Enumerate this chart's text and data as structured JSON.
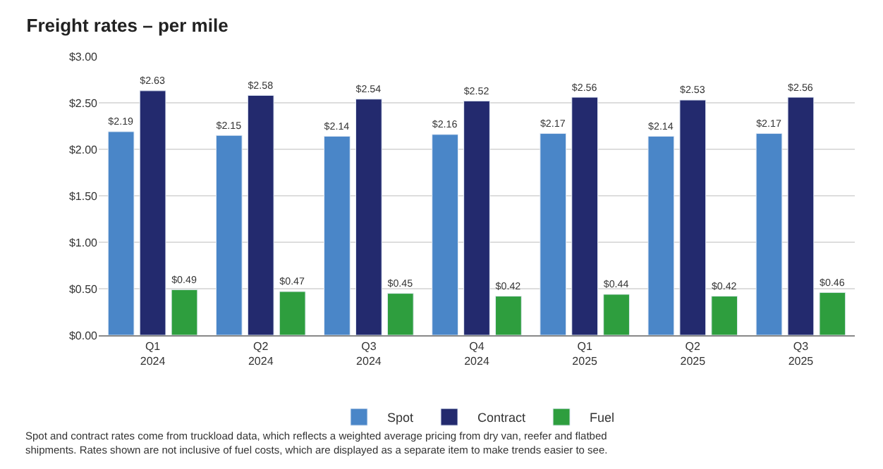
{
  "chart_data": {
    "type": "bar",
    "title": "Freight rates – per mile",
    "categories": [
      "Q1\n2024",
      "Q2\n2024",
      "Q3\n2024",
      "Q4\n2024",
      "Q1\n2025",
      "Q2\n2025",
      "Q3\n2025"
    ],
    "series": [
      {
        "name": "Spot",
        "color": "#4a86c8",
        "values": [
          2.19,
          2.15,
          2.14,
          2.16,
          2.17,
          2.14,
          2.17
        ],
        "value_labels": [
          "$2.19",
          "$2.15",
          "$2.14",
          "$2.16",
          "$2.17",
          "$2.14",
          "$2.17"
        ]
      },
      {
        "name": "Contract",
        "color": "#232a6e",
        "values": [
          2.63,
          2.58,
          2.54,
          2.52,
          2.56,
          2.53,
          2.56
        ],
        "value_labels": [
          "$2.63",
          "$2.58",
          "$2.54",
          "$2.52",
          "$2.56",
          "$2.53",
          "$2.56"
        ]
      },
      {
        "name": "Fuel",
        "color": "#2e9e3e",
        "values": [
          0.49,
          0.47,
          0.45,
          0.42,
          0.44,
          0.42,
          0.46
        ],
        "value_labels": [
          "$0.49",
          "$0.47",
          "$0.45",
          "$0.42",
          "$0.44",
          "$0.42",
          "$0.46"
        ]
      }
    ],
    "ylim": [
      0,
      3
    ],
    "yticks": [
      {
        "value": 0,
        "label": "$0.00"
      },
      {
        "value": 0.5,
        "label": "$0.50"
      },
      {
        "value": 1,
        "label": "$1.00"
      },
      {
        "value": 1.5,
        "label": "$1.50"
      },
      {
        "value": 2,
        "label": "$2.00"
      },
      {
        "value": 2.5,
        "label": "$2.50"
      },
      {
        "value": 3,
        "label": "$3.00"
      }
    ],
    "grid": "y",
    "legend": "bottom",
    "annotations": [
      "Spot and contract rates come from truckload data, which reflects a weighted average pricing from dry van, reefer and flatbed\nshipments. Rates shown are not inclusive of fuel costs, which are displayed as a separate item to make trends easier to see."
    ]
  }
}
